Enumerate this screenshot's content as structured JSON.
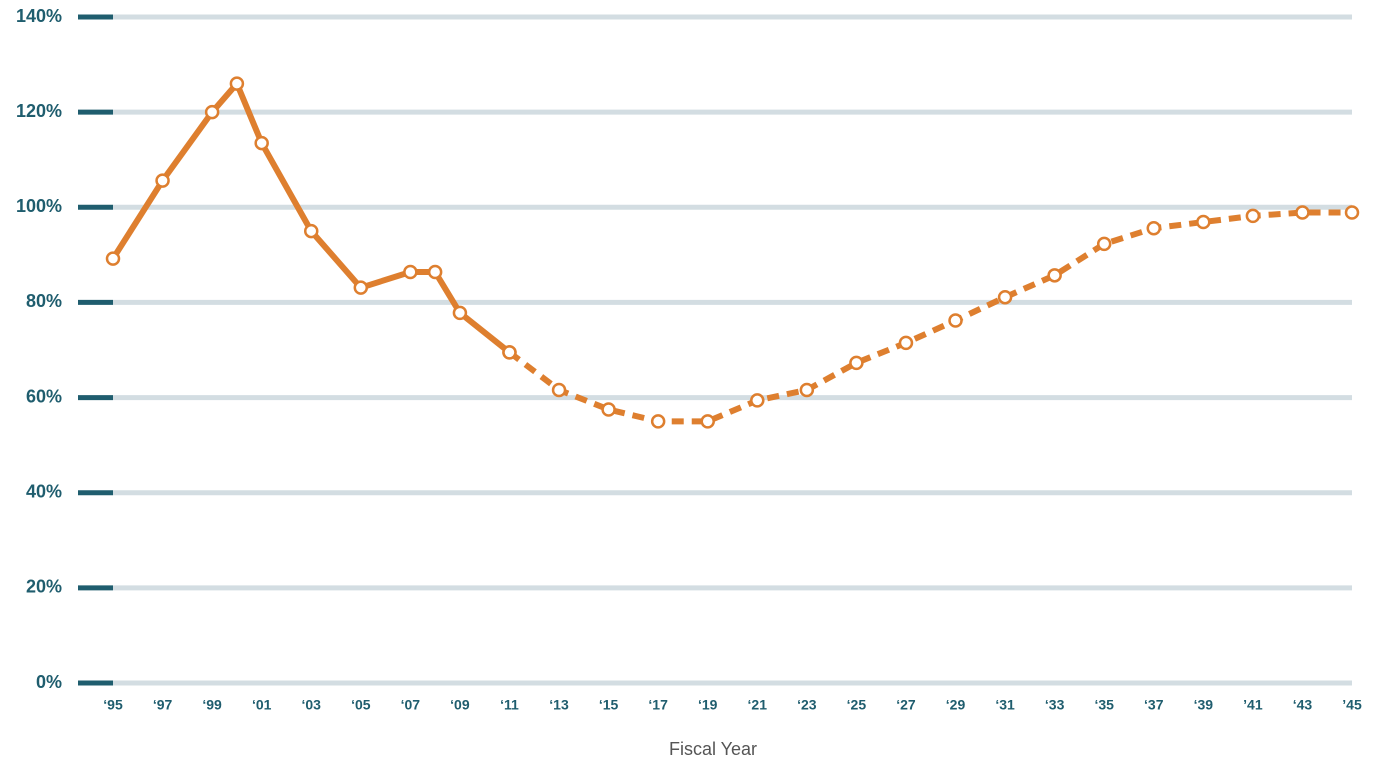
{
  "chart_data": {
    "type": "line",
    "x_label": "Fiscal Year",
    "xlim": [
      1995,
      2045
    ],
    "xticks": [
      {
        "value": 1995,
        "label": "‘95"
      },
      {
        "value": 1997,
        "label": "‘97"
      },
      {
        "value": 1999,
        "label": "‘99"
      },
      {
        "value": 2001,
        "label": "‘01"
      },
      {
        "value": 2003,
        "label": "‘03"
      },
      {
        "value": 2005,
        "label": "‘05"
      },
      {
        "value": 2007,
        "label": "‘07"
      },
      {
        "value": 2009,
        "label": "‘09"
      },
      {
        "value": 2011,
        "label": "‘11"
      },
      {
        "value": 2013,
        "label": "‘13"
      },
      {
        "value": 2015,
        "label": "‘15"
      },
      {
        "value": 2017,
        "label": "‘17"
      },
      {
        "value": 2019,
        "label": "‘19"
      },
      {
        "value": 2021,
        "label": "‘21"
      },
      {
        "value": 2023,
        "label": "‘23"
      },
      {
        "value": 2025,
        "label": "‘25"
      },
      {
        "value": 2027,
        "label": "‘27"
      },
      {
        "value": 2029,
        "label": "‘29"
      },
      {
        "value": 2031,
        "label": "‘31"
      },
      {
        "value": 2033,
        "label": "‘33"
      },
      {
        "value": 2035,
        "label": "‘35"
      },
      {
        "value": 2037,
        "label": "‘37"
      },
      {
        "value": 2039,
        "label": "‘39"
      },
      {
        "value": 2041,
        "label": "’41"
      },
      {
        "value": 2043,
        "label": "‘43"
      },
      {
        "value": 2045,
        "label": "’45"
      }
    ],
    "ylim": [
      0,
      140
    ],
    "yticks": [
      {
        "value": 0,
        "label": "0%"
      },
      {
        "value": 20,
        "label": "20%"
      },
      {
        "value": 40,
        "label": "40%"
      },
      {
        "value": 60,
        "label": "60%"
      },
      {
        "value": 80,
        "label": "80%"
      },
      {
        "value": 100,
        "label": "100%"
      },
      {
        "value": 120,
        "label": "120%"
      },
      {
        "value": 140,
        "label": "140%"
      }
    ],
    "grid": true,
    "series": [
      {
        "color": "#de7f2f",
        "dashed": false,
        "x": [
          1995,
          1997,
          1999,
          2000,
          2001,
          2003,
          2005,
          2007,
          2008,
          2009,
          2011
        ],
        "values": [
          89.2,
          105.6,
          120,
          126,
          113.5,
          95,
          83.1,
          86.4,
          86.4,
          77.8,
          69.5
        ]
      },
      {
        "color": "#de7f2f",
        "dashed": true,
        "x": [
          2011,
          2013,
          2015,
          2017,
          2019,
          2021,
          2023,
          2025,
          2027,
          2029,
          2031,
          2033,
          2035,
          2037,
          2039,
          2041,
          2043,
          2045
        ],
        "values": [
          69.5,
          61.6,
          57.5,
          55,
          55,
          59.4,
          61.6,
          67.3,
          71.5,
          76.2,
          81.1,
          85.7,
          92.3,
          95.6,
          96.9,
          98.2,
          98.9,
          98.9
        ]
      }
    ]
  }
}
